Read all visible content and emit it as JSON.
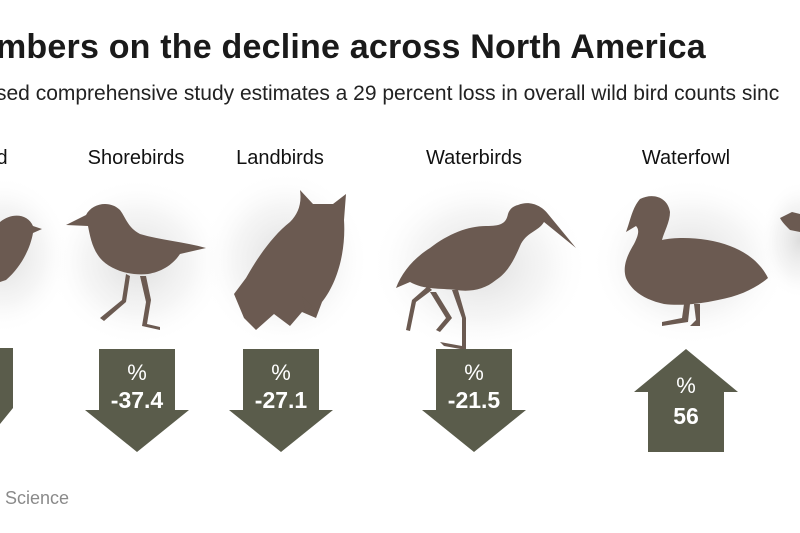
{
  "header": {
    "title": "mbers on the decline across North America",
    "subtitle": "sed comprehensive study estimates a 29 percent loss in overall wild bird counts sinc",
    "source": "l Science"
  },
  "colors": {
    "silhouette": "#6b5a51",
    "arrow": "#5a5c4b",
    "halo": "#e6e6e6"
  },
  "chart_data": {
    "type": "bar",
    "categories": [
      "d",
      "Shorebirds",
      "Landbirds",
      "Waterbirds",
      "Waterfowl",
      ""
    ],
    "series": [
      {
        "values": [
          null,
          -37.4,
          -27.1,
          -21.5,
          56,
          null
        ]
      }
    ],
    "value_prefix_label": "%",
    "display_values": [
      "",
      "-37.4",
      "-27.1",
      "-21.5",
      "56",
      ""
    ],
    "icons": [
      "bird-icon",
      "shorebird-icon",
      "owl-icon",
      "heron-icon",
      "duck-icon",
      "bird-icon"
    ]
  }
}
